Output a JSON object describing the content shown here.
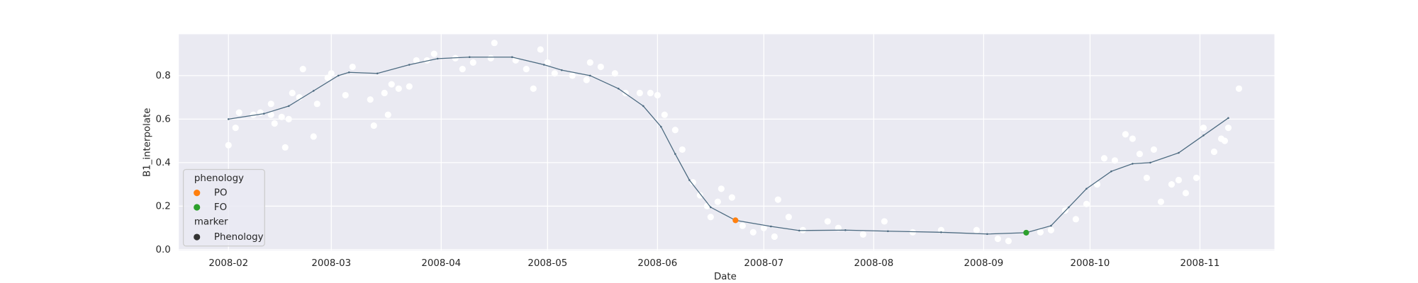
{
  "chart_data": {
    "type": "line",
    "y_label": "B1_interpolate",
    "x_label": "Date",
    "xlim": [
      "2008-01-18",
      "2008-11-22"
    ],
    "xticks": [
      {
        "value": "2008-02-01",
        "label": "2008-02"
      },
      {
        "value": "2008-03-01",
        "label": "2008-03"
      },
      {
        "value": "2008-04-01",
        "label": "2008-04"
      },
      {
        "value": "2008-05-01",
        "label": "2008-05"
      },
      {
        "value": "2008-06-01",
        "label": "2008-06"
      },
      {
        "value": "2008-07-01",
        "label": "2008-07"
      },
      {
        "value": "2008-08-01",
        "label": "2008-08"
      },
      {
        "value": "2008-09-01",
        "label": "2008-09"
      },
      {
        "value": "2008-10-01",
        "label": "2008-10"
      },
      {
        "value": "2008-11-01",
        "label": "2008-11"
      }
    ],
    "ylim": [
      -0.004,
      0.99
    ],
    "yticks": [
      {
        "value": 0,
        "label": "0.0"
      },
      0.2,
      0.4,
      0.6,
      0.8
    ],
    "grid": true,
    "line": {
      "color": "#4c6a80",
      "x": [
        "2008-02-01",
        "2008-02-11",
        "2008-02-18",
        "2008-02-25",
        "2008-03-03",
        "2008-03-06",
        "2008-03-14",
        "2008-03-23",
        "2008-03-31",
        "2008-04-09",
        "2008-04-21",
        "2008-04-30",
        "2008-05-05",
        "2008-05-13",
        "2008-05-21",
        "2008-05-28",
        "2008-06-02",
        "2008-06-06",
        "2008-06-10",
        "2008-06-16",
        "2008-06-23",
        "2008-07-03",
        "2008-07-11",
        "2008-07-24",
        "2008-08-05",
        "2008-08-20",
        "2008-09-02",
        "2008-09-13",
        "2008-09-20",
        "2008-09-25",
        "2008-09-30",
        "2008-10-07",
        "2008-10-13",
        "2008-10-18",
        "2008-10-26",
        "2008-11-02",
        "2008-11-09"
      ],
      "values": [
        0.6,
        0.625,
        0.66,
        0.73,
        0.8,
        0.815,
        0.81,
        0.85,
        0.878,
        0.885,
        0.885,
        0.85,
        0.825,
        0.8,
        0.74,
        0.66,
        0.565,
        0.44,
        0.32,
        0.195,
        0.135,
        0.107,
        0.088,
        0.09,
        0.085,
        0.08,
        0.072,
        0.078,
        0.11,
        0.195,
        0.28,
        0.36,
        0.395,
        0.4,
        0.445,
        0.525,
        0.605
      ]
    },
    "points": {
      "color": "#ffffff",
      "x": [
        "2008-02-01",
        "2008-02-03",
        "2008-02-04",
        "2008-02-08",
        "2008-02-10",
        "2008-02-13",
        "2008-02-13",
        "2008-02-14",
        "2008-02-16",
        "2008-02-17",
        "2008-02-18",
        "2008-02-19",
        "2008-02-21",
        "2008-02-22",
        "2008-02-25",
        "2008-02-26",
        "2008-02-29",
        "2008-03-01",
        "2008-03-05",
        "2008-03-07",
        "2008-03-12",
        "2008-03-13",
        "2008-03-16",
        "2008-03-17",
        "2008-03-18",
        "2008-03-20",
        "2008-03-23",
        "2008-03-25",
        "2008-03-28",
        "2008-03-30",
        "2008-04-05",
        "2008-04-07",
        "2008-04-10",
        "2008-04-15",
        "2008-04-16",
        "2008-04-22",
        "2008-04-25",
        "2008-04-27",
        "2008-04-29",
        "2008-05-01",
        "2008-05-03",
        "2008-05-08",
        "2008-05-12",
        "2008-05-13",
        "2008-05-16",
        "2008-05-20",
        "2008-05-23",
        "2008-05-27",
        "2008-05-30",
        "2008-06-01",
        "2008-06-03",
        "2008-06-06",
        "2008-06-08",
        "2008-06-11",
        "2008-06-13",
        "2008-06-15",
        "2008-06-16",
        "2008-06-18",
        "2008-06-19",
        "2008-06-22",
        "2008-06-25",
        "2008-06-28",
        "2008-07-01",
        "2008-07-04",
        "2008-07-05",
        "2008-07-08",
        "2008-07-12",
        "2008-07-19",
        "2008-07-22",
        "2008-07-29",
        "2008-08-04",
        "2008-08-12",
        "2008-08-20",
        "2008-08-30",
        "2008-09-05",
        "2008-09-08",
        "2008-09-17",
        "2008-09-20",
        "2008-09-24",
        "2008-09-27",
        "2008-09-30",
        "2008-10-03",
        "2008-10-05",
        "2008-10-08",
        "2008-10-11",
        "2008-10-13",
        "2008-10-15",
        "2008-10-17",
        "2008-10-19",
        "2008-10-21",
        "2008-10-24",
        "2008-10-26",
        "2008-10-28",
        "2008-10-31",
        "2008-11-02",
        "2008-11-05",
        "2008-11-07",
        "2008-11-08",
        "2008-11-09",
        "2008-11-12"
      ],
      "values": [
        0.48,
        0.56,
        0.63,
        0.62,
        0.63,
        0.62,
        0.67,
        0.58,
        0.61,
        0.47,
        0.6,
        0.72,
        0.7,
        0.83,
        0.52,
        0.67,
        0.79,
        0.81,
        0.71,
        0.84,
        0.69,
        0.57,
        0.72,
        0.62,
        0.76,
        0.74,
        0.75,
        0.87,
        0.87,
        0.9,
        0.88,
        0.83,
        0.86,
        0.88,
        0.95,
        0.87,
        0.83,
        0.74,
        0.92,
        0.86,
        0.81,
        0.8,
        0.78,
        0.86,
        0.84,
        0.81,
        0.72,
        0.72,
        0.72,
        0.71,
        0.62,
        0.55,
        0.46,
        0.31,
        0.25,
        0.2,
        0.15,
        0.22,
        0.28,
        0.24,
        0.11,
        0.08,
        0.1,
        0.06,
        0.23,
        0.15,
        0.09,
        0.13,
        0.1,
        0.07,
        0.13,
        0.08,
        0.09,
        0.09,
        0.05,
        0.04,
        0.08,
        0.09,
        0.18,
        0.14,
        0.21,
        0.3,
        0.42,
        0.41,
        0.53,
        0.51,
        0.44,
        0.33,
        0.46,
        0.22,
        0.3,
        0.32,
        0.26,
        0.33,
        0.56,
        0.45,
        0.51,
        0.5,
        0.56,
        0.74
      ]
    },
    "phenology": {
      "title": "phenology",
      "series": [
        {
          "name": "PO",
          "color": "#ff7f0e",
          "x": [
            "2008-06-23"
          ],
          "values": [
            0.135
          ]
        },
        {
          "name": "FO",
          "color": "#2ca02c",
          "x": [
            "2008-09-13"
          ],
          "values": [
            0.078
          ]
        }
      ]
    },
    "marker": {
      "title": "marker",
      "entries": [
        {
          "name": "Phenology",
          "color": "#333333"
        }
      ]
    }
  }
}
